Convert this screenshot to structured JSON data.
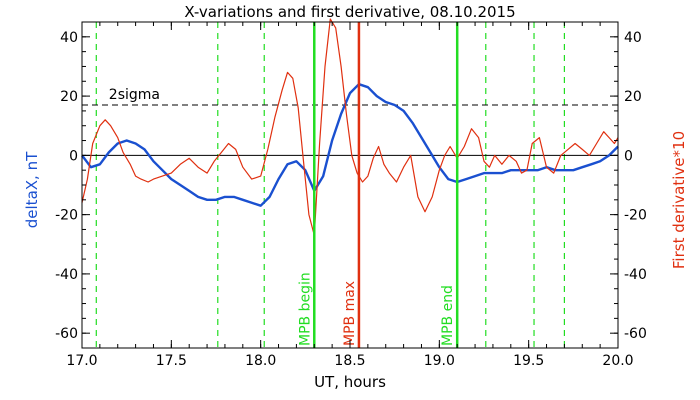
{
  "chart_data": {
    "type": "line",
    "title": "X-variations and first derivative, 08.10.2015",
    "xlabel": "UT, hours",
    "ylabel": "deltaX, nT",
    "ylabel_right": "First derivative*10",
    "xlim": [
      17.0,
      20.0
    ],
    "ylim": [
      -65,
      45
    ],
    "ylim_right": [
      -65,
      45
    ],
    "x_ticks": [
      17.0,
      17.5,
      18.0,
      18.5,
      19.0,
      19.5,
      20.0
    ],
    "x_tick_labels": [
      "17.0",
      "17.5",
      "18.0",
      "18.5",
      "19.0",
      "19.5",
      "20.0"
    ],
    "y_ticks": [
      -60,
      -40,
      -20,
      0,
      20,
      40
    ],
    "y_tick_labels": [
      "-60",
      "-40",
      "-20",
      "0",
      "20",
      "40"
    ],
    "y_ticks_right": [
      -60,
      -40,
      -20,
      0,
      20,
      40
    ],
    "y_tick_labels_right": [
      "-60",
      "-40",
      "-20",
      "0",
      "20",
      "40"
    ],
    "colors": {
      "deltaX": "#1a50d0",
      "derivative": "#e03010",
      "green": "#22dd22",
      "red_marker": "#e03010",
      "ylabel_left": "#1a50d0",
      "ylabel_right": "#e03010"
    },
    "series": [
      {
        "key": "deltaX",
        "axis": "left",
        "x": [
          17.0,
          17.05,
          17.1,
          17.15,
          17.2,
          17.25,
          17.3,
          17.35,
          17.4,
          17.45,
          17.5,
          17.55,
          17.6,
          17.65,
          17.7,
          17.75,
          17.8,
          17.85,
          17.9,
          17.95,
          18.0,
          18.05,
          18.1,
          18.15,
          18.2,
          18.25,
          18.3,
          18.35,
          18.4,
          18.45,
          18.5,
          18.55,
          18.6,
          18.65,
          18.7,
          18.75,
          18.8,
          18.85,
          18.9,
          18.95,
          19.0,
          19.05,
          19.1,
          19.15,
          19.2,
          19.25,
          19.3,
          19.35,
          19.4,
          19.45,
          19.5,
          19.55,
          19.6,
          19.65,
          19.7,
          19.75,
          19.8,
          19.85,
          19.9,
          19.95,
          20.0
        ],
        "values": [
          0,
          -4,
          -3,
          1,
          4,
          5,
          4,
          2,
          -2,
          -5,
          -8,
          -10,
          -12,
          -14,
          -15,
          -15,
          -14,
          -14,
          -15,
          -16,
          -17,
          -14,
          -8,
          -3,
          -2,
          -5,
          -12,
          -7,
          5,
          14,
          21,
          24,
          23,
          20,
          18,
          17,
          15,
          11,
          6,
          1,
          -4,
          -8,
          -9,
          -8,
          -7,
          -6,
          -6,
          -6,
          -5,
          -5,
          -5,
          -5,
          -4,
          -5,
          -5,
          -5,
          -4,
          -3,
          -2,
          0,
          3
        ]
      },
      {
        "key": "derivative",
        "axis": "right",
        "x": [
          17.0,
          17.03,
          17.06,
          17.1,
          17.13,
          17.16,
          17.2,
          17.23,
          17.27,
          17.3,
          17.33,
          17.37,
          17.4,
          17.45,
          17.5,
          17.55,
          17.6,
          17.65,
          17.7,
          17.74,
          17.78,
          17.82,
          17.86,
          17.9,
          17.95,
          18.0,
          18.04,
          18.08,
          18.12,
          18.15,
          18.18,
          18.21,
          18.24,
          18.27,
          18.3,
          18.33,
          18.36,
          18.39,
          18.42,
          18.45,
          18.48,
          18.51,
          18.54,
          18.57,
          18.6,
          18.63,
          18.66,
          18.69,
          18.72,
          18.76,
          18.8,
          18.84,
          18.88,
          18.92,
          18.96,
          19.0,
          19.03,
          19.06,
          19.1,
          19.14,
          19.18,
          19.22,
          19.25,
          19.28,
          19.31,
          19.35,
          19.39,
          19.43,
          19.46,
          19.49,
          19.52,
          19.56,
          19.6,
          19.64,
          19.68,
          19.72,
          19.76,
          19.8,
          19.84,
          19.88,
          19.92,
          19.95,
          19.98,
          20.0
        ],
        "values": [
          -16,
          -8,
          4,
          10,
          12,
          10,
          6,
          1,
          -3,
          -7,
          -8,
          -9,
          -8,
          -7,
          -6,
          -3,
          -1,
          -4,
          -6,
          -2,
          1,
          4,
          2,
          -4,
          -8,
          -7,
          2,
          13,
          22,
          28,
          26,
          16,
          -2,
          -20,
          -27,
          4,
          30,
          46,
          43,
          30,
          14,
          0,
          -6,
          -9,
          -7,
          -1,
          3,
          -3,
          -6,
          -9,
          -4,
          0,
          -14,
          -19,
          -14,
          -5,
          0,
          3,
          -1,
          3,
          9,
          6,
          -2,
          -4,
          0,
          -3,
          0,
          -2,
          -6,
          -5,
          4,
          6,
          -4,
          -6,
          0,
          2,
          4,
          2,
          0,
          4,
          8,
          6,
          4,
          6
        ]
      }
    ],
    "threshold": {
      "y": 17,
      "label": "2sigma"
    },
    "zero_line": 0,
    "dashed_green_lines": [
      17.08,
      17.76,
      18.02,
      19.26,
      19.53,
      19.7
    ],
    "markers": [
      {
        "x": 18.3,
        "label": "MPB begin",
        "color_key": "green"
      },
      {
        "x": 18.55,
        "label": "MPB max",
        "color_key": "red_marker"
      },
      {
        "x": 19.1,
        "label": "MPB end",
        "color_key": "green"
      }
    ]
  }
}
